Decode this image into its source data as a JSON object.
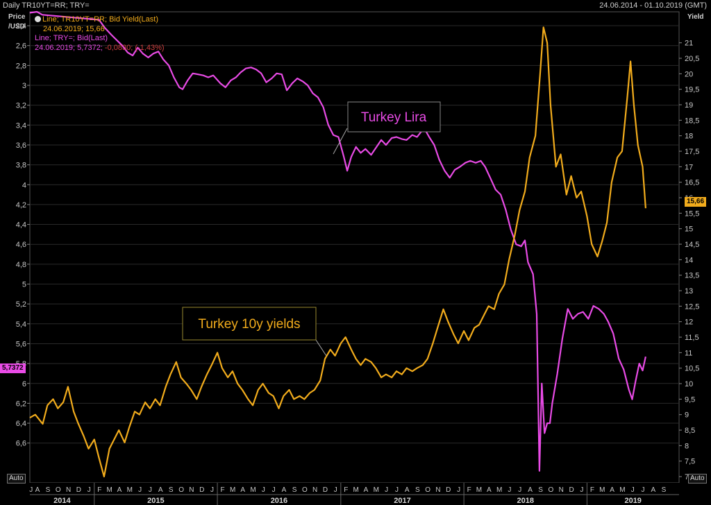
{
  "header": {
    "left": "Daily TR10YT=RR; TRY=",
    "right": "24.06.2014 - 01.10.2019 (GMT)"
  },
  "axes": {
    "left_unit_line1": "Price",
    "left_unit_line2": "/USD",
    "right_unit": "Yield",
    "auto_left": "Auto",
    "auto_right": "Auto"
  },
  "legend": {
    "line1": "Line; TR10YT=RR; Bid Yield(Last)",
    "line2": "24.06.2019; 15,66",
    "line3": "Line; TRY=; Bid(Last)",
    "line4a": "24.06.2019; 5,7372;",
    "line4b": " -0,0830; (-1,43%)"
  },
  "badges": {
    "left_value": "5,7372",
    "right_value": "15,66"
  },
  "annotations": {
    "lira": "Turkey Lira",
    "yields": "Turkey 10y yields"
  },
  "colors": {
    "lira": "#e94be6",
    "yields": "#f2ac1c",
    "grid": "#2a2a2a",
    "background": "#000000",
    "negative": "#d04040"
  },
  "chart_data": {
    "type": "line",
    "x_start": "2014-06-24",
    "x_end": "2019-10-01",
    "x_months": [
      "J",
      "A",
      "S",
      "O",
      "N",
      "D",
      "J",
      "F",
      "M",
      "A",
      "M",
      "J",
      "J",
      "A",
      "S",
      "O",
      "N",
      "D",
      "J",
      "F",
      "M",
      "A",
      "M",
      "J",
      "J",
      "A",
      "S",
      "O",
      "N",
      "D",
      "J",
      "F",
      "M",
      "A",
      "M",
      "J",
      "J",
      "A",
      "S",
      "O",
      "N",
      "D",
      "J",
      "F",
      "M",
      "A",
      "M",
      "J",
      "J",
      "A",
      "S",
      "O",
      "N",
      "D",
      "J",
      "F",
      "M",
      "A",
      "M",
      "J",
      "J",
      "A",
      "S"
    ],
    "x_years": [
      "2014",
      "2015",
      "2016",
      "2017",
      "2018",
      "2019"
    ],
    "left_axis": {
      "label": "Price /USD",
      "inverted": true,
      "range": [
        2.26,
        7.0
      ],
      "ticks": [
        "2,4",
        "2,6",
        "2,8",
        "3",
        "3,2",
        "3,4",
        "3,6",
        "3,8",
        "4",
        "4,2",
        "4,4",
        "4,6",
        "4,8",
        "5",
        "5,2",
        "5,4",
        "5,6",
        "5,8",
        "6",
        "6,2",
        "6,4",
        "6,6"
      ],
      "tick_values": [
        2.4,
        2.6,
        2.8,
        3.0,
        3.2,
        3.4,
        3.6,
        3.8,
        4.0,
        4.2,
        4.4,
        4.6,
        4.8,
        5.0,
        5.2,
        5.4,
        5.6,
        5.8,
        6.0,
        6.2,
        6.4,
        6.6
      ]
    },
    "right_axis": {
      "label": "Yield",
      "range": [
        6.8,
        22.0
      ],
      "ticks": [
        "7",
        "7,5",
        "8",
        "8,5",
        "9",
        "9,5",
        "10",
        "10,5",
        "11",
        "11,5",
        "12",
        "12,5",
        "13",
        "13,5",
        "14",
        "14,5",
        "15",
        "15,5",
        "16",
        "16,5",
        "17",
        "17,5",
        "18",
        "18,5",
        "19",
        "19,5",
        "20",
        "20,5",
        "21"
      ],
      "tick_values": [
        7,
        7.5,
        8,
        8.5,
        9,
        9.5,
        10,
        10.5,
        11,
        11.5,
        12,
        12.5,
        13,
        13.5,
        14,
        14.5,
        15,
        15.5,
        16,
        16.5,
        17,
        17.5,
        18,
        18.5,
        19,
        19.5,
        20,
        20.5,
        21
      ]
    },
    "series": [
      {
        "name": "TRY=",
        "axis": "left",
        "color": "#e94be6",
        "points": [
          [
            "2014-06-24",
            2.27
          ],
          [
            "2014-07-15",
            2.26
          ],
          [
            "2014-07-31",
            2.29
          ],
          [
            "2015-01-15",
            2.34
          ],
          [
            "2015-02-01",
            2.42
          ],
          [
            "2015-02-20",
            2.49
          ],
          [
            "2015-03-10",
            2.55
          ],
          [
            "2015-03-25",
            2.6
          ],
          [
            "2015-04-10",
            2.67
          ],
          [
            "2015-04-25",
            2.7
          ],
          [
            "2015-05-10",
            2.62
          ],
          [
            "2015-05-25",
            2.68
          ],
          [
            "2015-06-10",
            2.72
          ],
          [
            "2015-06-25",
            2.68
          ],
          [
            "2015-07-10",
            2.66
          ],
          [
            "2015-07-25",
            2.74
          ],
          [
            "2015-08-10",
            2.8
          ],
          [
            "2015-08-25",
            2.92
          ],
          [
            "2015-09-10",
            3.02
          ],
          [
            "2015-09-20",
            3.04
          ],
          [
            "2015-10-05",
            2.95
          ],
          [
            "2015-10-20",
            2.88
          ],
          [
            "2015-11-05",
            2.89
          ],
          [
            "2015-11-20",
            2.9
          ],
          [
            "2015-12-05",
            2.92
          ],
          [
            "2015-12-20",
            2.9
          ],
          [
            "2016-01-10",
            2.98
          ],
          [
            "2016-01-25",
            3.02
          ],
          [
            "2016-02-10",
            2.95
          ],
          [
            "2016-02-25",
            2.92
          ],
          [
            "2016-03-10",
            2.87
          ],
          [
            "2016-03-25",
            2.83
          ],
          [
            "2016-04-10",
            2.82
          ],
          [
            "2016-04-25",
            2.84
          ],
          [
            "2016-05-10",
            2.88
          ],
          [
            "2016-05-25",
            2.97
          ],
          [
            "2016-06-10",
            2.93
          ],
          [
            "2016-06-25",
            2.88
          ],
          [
            "2016-07-10",
            2.89
          ],
          [
            "2016-07-25",
            3.05
          ],
          [
            "2016-08-10",
            2.98
          ],
          [
            "2016-08-25",
            2.93
          ],
          [
            "2016-09-10",
            2.96
          ],
          [
            "2016-09-25",
            3.0
          ],
          [
            "2016-10-10",
            3.08
          ],
          [
            "2016-10-25",
            3.12
          ],
          [
            "2016-11-10",
            3.22
          ],
          [
            "2016-11-25",
            3.4
          ],
          [
            "2016-12-10",
            3.5
          ],
          [
            "2016-12-25",
            3.52
          ],
          [
            "2017-01-10",
            3.72
          ],
          [
            "2017-01-20",
            3.86
          ],
          [
            "2017-02-01",
            3.72
          ],
          [
            "2017-02-15",
            3.62
          ],
          [
            "2017-03-01",
            3.68
          ],
          [
            "2017-03-15",
            3.64
          ],
          [
            "2017-04-01",
            3.7
          ],
          [
            "2017-04-15",
            3.63
          ],
          [
            "2017-05-01",
            3.55
          ],
          [
            "2017-05-15",
            3.6
          ],
          [
            "2017-06-01",
            3.53
          ],
          [
            "2017-06-15",
            3.52
          ],
          [
            "2017-07-01",
            3.54
          ],
          [
            "2017-07-15",
            3.55
          ],
          [
            "2017-08-01",
            3.5
          ],
          [
            "2017-08-15",
            3.52
          ],
          [
            "2017-09-05",
            3.43
          ],
          [
            "2017-09-20",
            3.52
          ],
          [
            "2017-10-05",
            3.6
          ],
          [
            "2017-10-20",
            3.75
          ],
          [
            "2017-11-05",
            3.86
          ],
          [
            "2017-11-20",
            3.93
          ],
          [
            "2017-12-05",
            3.85
          ],
          [
            "2017-12-20",
            3.82
          ],
          [
            "2018-01-05",
            3.78
          ],
          [
            "2018-01-20",
            3.76
          ],
          [
            "2018-02-05",
            3.78
          ],
          [
            "2018-02-20",
            3.76
          ],
          [
            "2018-03-05",
            3.82
          ],
          [
            "2018-03-20",
            3.93
          ],
          [
            "2018-04-05",
            4.05
          ],
          [
            "2018-04-20",
            4.1
          ],
          [
            "2018-05-05",
            4.25
          ],
          [
            "2018-05-20",
            4.45
          ],
          [
            "2018-06-05",
            4.6
          ],
          [
            "2018-06-20",
            4.62
          ],
          [
            "2018-07-01",
            4.56
          ],
          [
            "2018-07-10",
            4.78
          ],
          [
            "2018-07-25",
            4.9
          ],
          [
            "2018-08-05",
            5.3
          ],
          [
            "2018-08-13",
            6.88
          ],
          [
            "2018-08-20",
            6.0
          ],
          [
            "2018-08-28",
            6.5
          ],
          [
            "2018-09-05",
            6.4
          ],
          [
            "2018-09-13",
            6.4
          ],
          [
            "2018-09-20",
            6.2
          ],
          [
            "2018-10-05",
            5.9
          ],
          [
            "2018-10-20",
            5.55
          ],
          [
            "2018-11-05",
            5.25
          ],
          [
            "2018-11-20",
            5.35
          ],
          [
            "2018-12-05",
            5.3
          ],
          [
            "2018-12-20",
            5.28
          ],
          [
            "2019-01-05",
            5.35
          ],
          [
            "2019-01-20",
            5.22
          ],
          [
            "2019-02-05",
            5.25
          ],
          [
            "2019-02-20",
            5.3
          ],
          [
            "2019-03-05",
            5.38
          ],
          [
            "2019-03-20",
            5.5
          ],
          [
            "2019-04-05",
            5.75
          ],
          [
            "2019-04-20",
            5.86
          ],
          [
            "2019-05-05",
            6.06
          ],
          [
            "2019-05-15",
            6.16
          ],
          [
            "2019-05-25",
            5.98
          ],
          [
            "2019-06-05",
            5.8
          ],
          [
            "2019-06-15",
            5.87
          ],
          [
            "2019-06-24",
            5.73
          ]
        ]
      },
      {
        "name": "TR10YT=RR",
        "axis": "right",
        "color": "#f2ac1c",
        "points": [
          [
            "2014-06-24",
            8.9
          ],
          [
            "2014-07-10",
            9.0
          ],
          [
            "2014-08-01",
            8.7
          ],
          [
            "2014-08-15",
            9.3
          ],
          [
            "2014-09-01",
            9.5
          ],
          [
            "2014-09-15",
            9.2
          ],
          [
            "2014-10-01",
            9.4
          ],
          [
            "2014-10-15",
            9.9
          ],
          [
            "2014-11-01",
            9.1
          ],
          [
            "2014-11-15",
            8.7
          ],
          [
            "2014-12-01",
            8.3
          ],
          [
            "2014-12-15",
            7.9
          ],
          [
            "2015-01-01",
            8.2
          ],
          [
            "2015-01-15",
            7.6
          ],
          [
            "2015-01-30",
            7.0
          ],
          [
            "2015-02-15",
            7.9
          ],
          [
            "2015-03-01",
            8.2
          ],
          [
            "2015-03-15",
            8.5
          ],
          [
            "2015-04-01",
            8.1
          ],
          [
            "2015-04-15",
            8.6
          ],
          [
            "2015-05-01",
            9.1
          ],
          [
            "2015-05-15",
            9.0
          ],
          [
            "2015-06-01",
            9.4
          ],
          [
            "2015-06-15",
            9.2
          ],
          [
            "2015-07-01",
            9.5
          ],
          [
            "2015-07-15",
            9.3
          ],
          [
            "2015-08-01",
            9.9
          ],
          [
            "2015-08-15",
            10.3
          ],
          [
            "2015-09-01",
            10.7
          ],
          [
            "2015-09-15",
            10.2
          ],
          [
            "2015-10-01",
            10.0
          ],
          [
            "2015-10-15",
            9.8
          ],
          [
            "2015-11-01",
            9.5
          ],
          [
            "2015-11-15",
            9.9
          ],
          [
            "2015-12-01",
            10.3
          ],
          [
            "2015-12-15",
            10.6
          ],
          [
            "2016-01-01",
            11.0
          ],
          [
            "2016-01-15",
            10.5
          ],
          [
            "2016-02-01",
            10.2
          ],
          [
            "2016-02-15",
            10.4
          ],
          [
            "2016-03-01",
            10.0
          ],
          [
            "2016-03-15",
            9.8
          ],
          [
            "2016-04-01",
            9.5
          ],
          [
            "2016-04-15",
            9.3
          ],
          [
            "2016-05-01",
            9.8
          ],
          [
            "2016-05-15",
            10.0
          ],
          [
            "2016-06-01",
            9.7
          ],
          [
            "2016-06-15",
            9.6
          ],
          [
            "2016-07-01",
            9.2
          ],
          [
            "2016-07-15",
            9.6
          ],
          [
            "2016-08-01",
            9.8
          ],
          [
            "2016-08-15",
            9.5
          ],
          [
            "2016-09-01",
            9.6
          ],
          [
            "2016-09-15",
            9.5
          ],
          [
            "2016-10-01",
            9.7
          ],
          [
            "2016-10-15",
            9.8
          ],
          [
            "2016-11-01",
            10.1
          ],
          [
            "2016-11-15",
            10.8
          ],
          [
            "2016-12-01",
            11.1
          ],
          [
            "2016-12-15",
            10.9
          ],
          [
            "2017-01-01",
            11.3
          ],
          [
            "2017-01-15",
            11.5
          ],
          [
            "2017-02-01",
            11.1
          ],
          [
            "2017-02-15",
            10.8
          ],
          [
            "2017-03-01",
            10.6
          ],
          [
            "2017-03-15",
            10.8
          ],
          [
            "2017-04-01",
            10.7
          ],
          [
            "2017-04-15",
            10.5
          ],
          [
            "2017-05-01",
            10.2
          ],
          [
            "2017-05-15",
            10.3
          ],
          [
            "2017-06-01",
            10.2
          ],
          [
            "2017-06-15",
            10.4
          ],
          [
            "2017-07-01",
            10.3
          ],
          [
            "2017-07-15",
            10.5
          ],
          [
            "2017-08-01",
            10.4
          ],
          [
            "2017-08-15",
            10.5
          ],
          [
            "2017-09-01",
            10.6
          ],
          [
            "2017-09-15",
            10.8
          ],
          [
            "2017-10-01",
            11.3
          ],
          [
            "2017-10-15",
            11.8
          ],
          [
            "2017-11-01",
            12.4
          ],
          [
            "2017-11-15",
            12.0
          ],
          [
            "2017-12-01",
            11.6
          ],
          [
            "2017-12-15",
            11.3
          ],
          [
            "2018-01-01",
            11.7
          ],
          [
            "2018-01-15",
            11.4
          ],
          [
            "2018-02-01",
            11.8
          ],
          [
            "2018-02-15",
            11.9
          ],
          [
            "2018-03-01",
            12.2
          ],
          [
            "2018-03-15",
            12.5
          ],
          [
            "2018-04-01",
            12.4
          ],
          [
            "2018-04-15",
            12.9
          ],
          [
            "2018-05-01",
            13.2
          ],
          [
            "2018-05-15",
            14.0
          ],
          [
            "2018-06-01",
            14.8
          ],
          [
            "2018-06-15",
            15.6
          ],
          [
            "2018-07-01",
            16.2
          ],
          [
            "2018-07-15",
            17.3
          ],
          [
            "2018-08-01",
            18.0
          ],
          [
            "2018-08-15",
            20.0
          ],
          [
            "2018-08-25",
            21.5
          ],
          [
            "2018-09-05",
            21.0
          ],
          [
            "2018-09-15",
            19.0
          ],
          [
            "2018-10-01",
            17.0
          ],
          [
            "2018-10-15",
            17.4
          ],
          [
            "2018-11-01",
            16.1
          ],
          [
            "2018-11-15",
            16.7
          ],
          [
            "2018-12-01",
            16.0
          ],
          [
            "2018-12-15",
            16.2
          ],
          [
            "2019-01-01",
            15.4
          ],
          [
            "2019-01-15",
            14.5
          ],
          [
            "2019-02-01",
            14.1
          ],
          [
            "2019-02-15",
            14.6
          ],
          [
            "2019-03-01",
            15.2
          ],
          [
            "2019-03-15",
            16.5
          ],
          [
            "2019-04-01",
            17.3
          ],
          [
            "2019-04-15",
            17.5
          ],
          [
            "2019-05-01",
            19.3
          ],
          [
            "2019-05-10",
            20.4
          ],
          [
            "2019-05-20",
            19.0
          ],
          [
            "2019-06-01",
            17.7
          ],
          [
            "2019-06-15",
            17.0
          ],
          [
            "2019-06-24",
            15.66
          ]
        ]
      }
    ]
  }
}
